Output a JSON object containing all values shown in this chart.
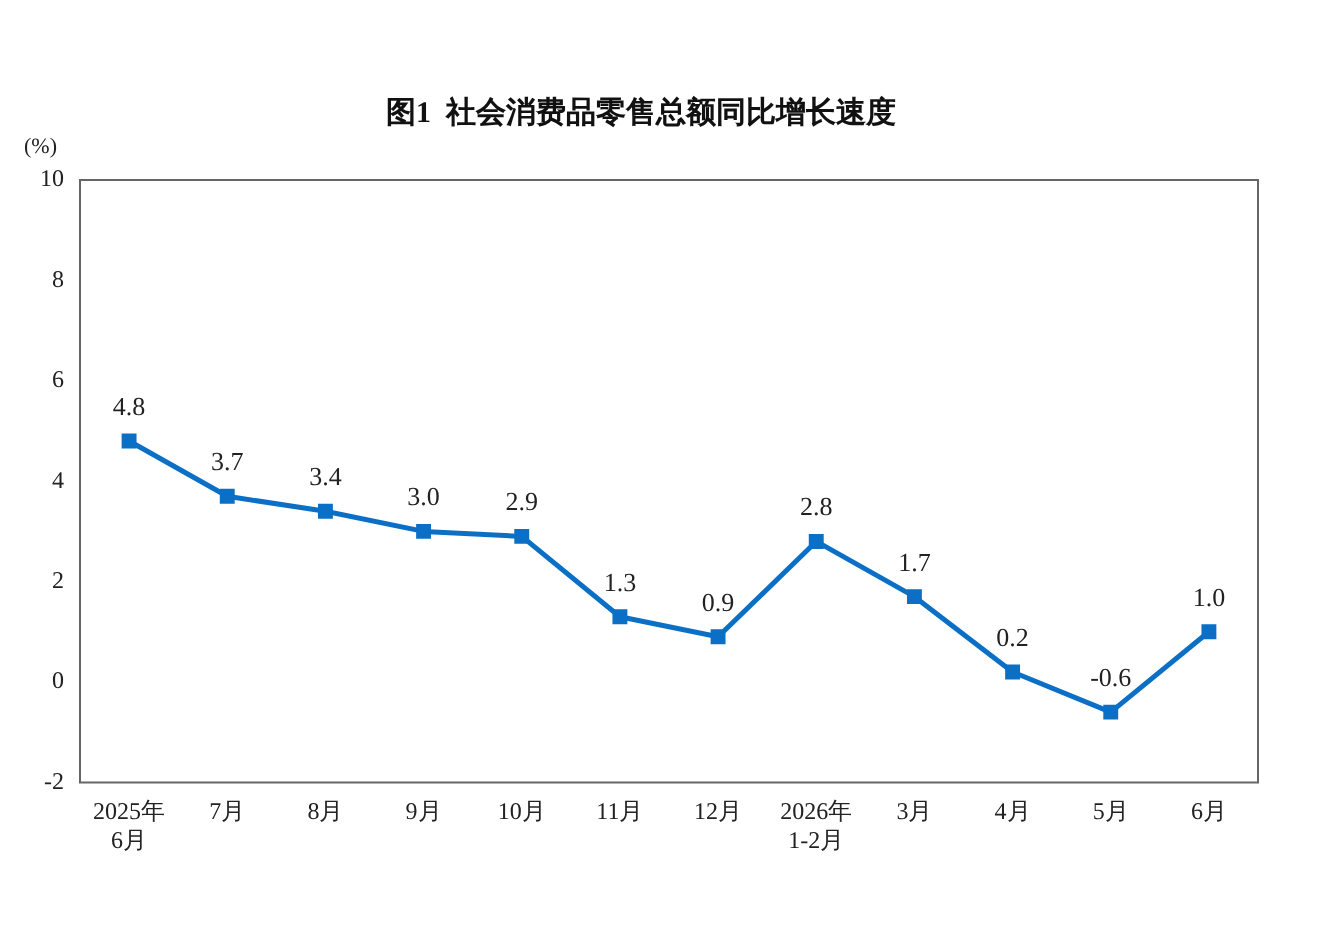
{
  "chart_data": {
    "type": "line",
    "title": "图1  社会消费品零售总额同比增长速度",
    "ylabel": "(%)",
    "categories": [
      "2025年\n6月",
      "7月",
      "8月",
      "9月",
      "10月",
      "11月",
      "12月",
      "2026年\n1-2月",
      "3月",
      "4月",
      "5月",
      "6月"
    ],
    "series": [
      {
        "color": "#0b6fc6",
        "values": [
          4.8,
          3.7,
          3.4,
          3.0,
          2.9,
          1.3,
          0.9,
          2.8,
          1.7,
          0.2,
          -0.6,
          1.0
        ],
        "value_labels": [
          "4.8",
          "3.7",
          "3.4",
          "3.0",
          "2.9",
          "1.3",
          "0.9",
          "2.8",
          "1.7",
          "0.2",
          "-0.6",
          "1.0"
        ]
      }
    ],
    "ylim": [
      -2,
      10
    ],
    "yticks": [
      -2,
      0,
      2,
      4,
      6,
      8,
      10
    ],
    "grid": false,
    "legend": false,
    "marker": "square",
    "line_style": "solid"
  }
}
